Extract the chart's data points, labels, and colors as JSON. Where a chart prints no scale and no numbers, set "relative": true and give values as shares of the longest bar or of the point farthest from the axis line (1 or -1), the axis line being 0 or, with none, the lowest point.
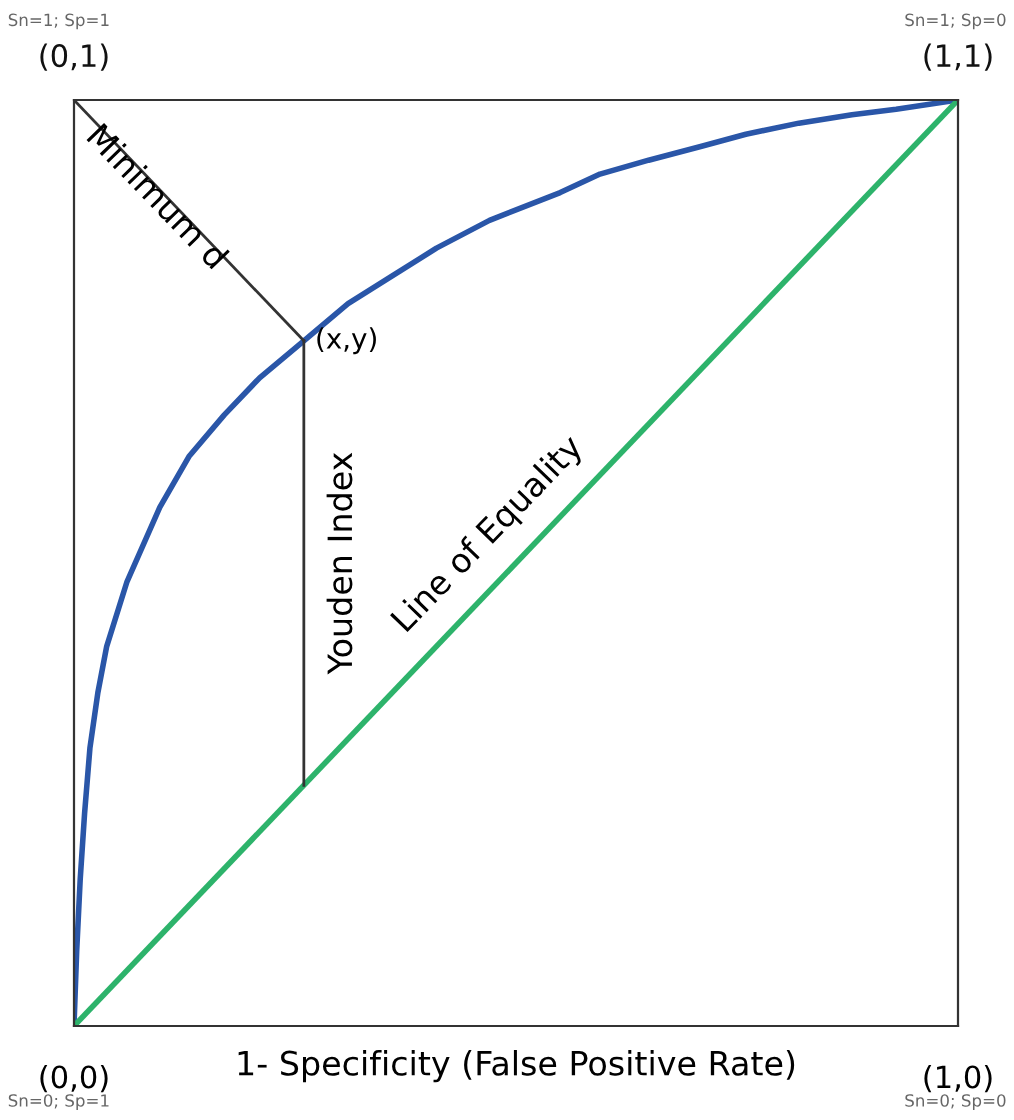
{
  "chart_data": {
    "type": "line",
    "xlabel": "1- Specificity (False Positive Rate)",
    "xlim": [
      0,
      1
    ],
    "xticks": [
      {
        "value": 0,
        "label": "(0,0)"
      },
      {
        "value": 1,
        "label": "(1,0)"
      }
    ],
    "relative": true,
    "tick_labels": "x",
    "legend": false,
    "marker": "none",
    "line_style": "solid",
    "series": [
      {
        "color": "#2a56a8",
        "x": [
          0,
          0.003,
          0.007,
          0.012,
          0.018,
          0.027,
          0.037,
          0.06,
          0.097,
          0.13,
          0.17,
          0.21,
          0.26,
          0.31,
          0.36,
          0.41,
          0.47,
          0.55,
          0.595,
          0.65,
          0.71,
          0.76,
          0.82,
          0.88,
          0.93,
          1
        ],
        "values": [
          0,
          0.08,
          0.158,
          0.23,
          0.3,
          0.36,
          0.41,
          0.48,
          0.56,
          0.615,
          0.66,
          0.7,
          0.74,
          0.78,
          0.81,
          0.84,
          0.87,
          0.9,
          0.92,
          0.935,
          0.95,
          0.963,
          0.975,
          0.984,
          0.99,
          1
        ]
      },
      {
        "color": "#2db36b",
        "x": [
          0,
          1
        ],
        "values": [
          0,
          1
        ]
      },
      {
        "color": "#333333",
        "x": [
          0,
          0.26
        ],
        "values": [
          1,
          0.74
        ]
      },
      {
        "color": "#333333",
        "x": [
          0.26,
          0.26
        ],
        "values": [
          0.26,
          0.74
        ]
      }
    ],
    "annotations": [
      "(0,1)",
      "(1,1)",
      "Sn=1; Sp=1",
      "Sn=1; Sp=0",
      "Sn=0; Sp=1",
      "Sn=0; Sp=0",
      {
        "text": "Minimum d",
        "x": 0.13,
        "y": 0.87
      },
      {
        "text": "(x,y)",
        "x": 0.26,
        "y": 0.74
      },
      {
        "text": "Youden Index",
        "x": 0.26,
        "y": 0.5
      },
      {
        "text": "Line of Equality",
        "x": 0.5,
        "y": 0.5
      }
    ]
  }
}
